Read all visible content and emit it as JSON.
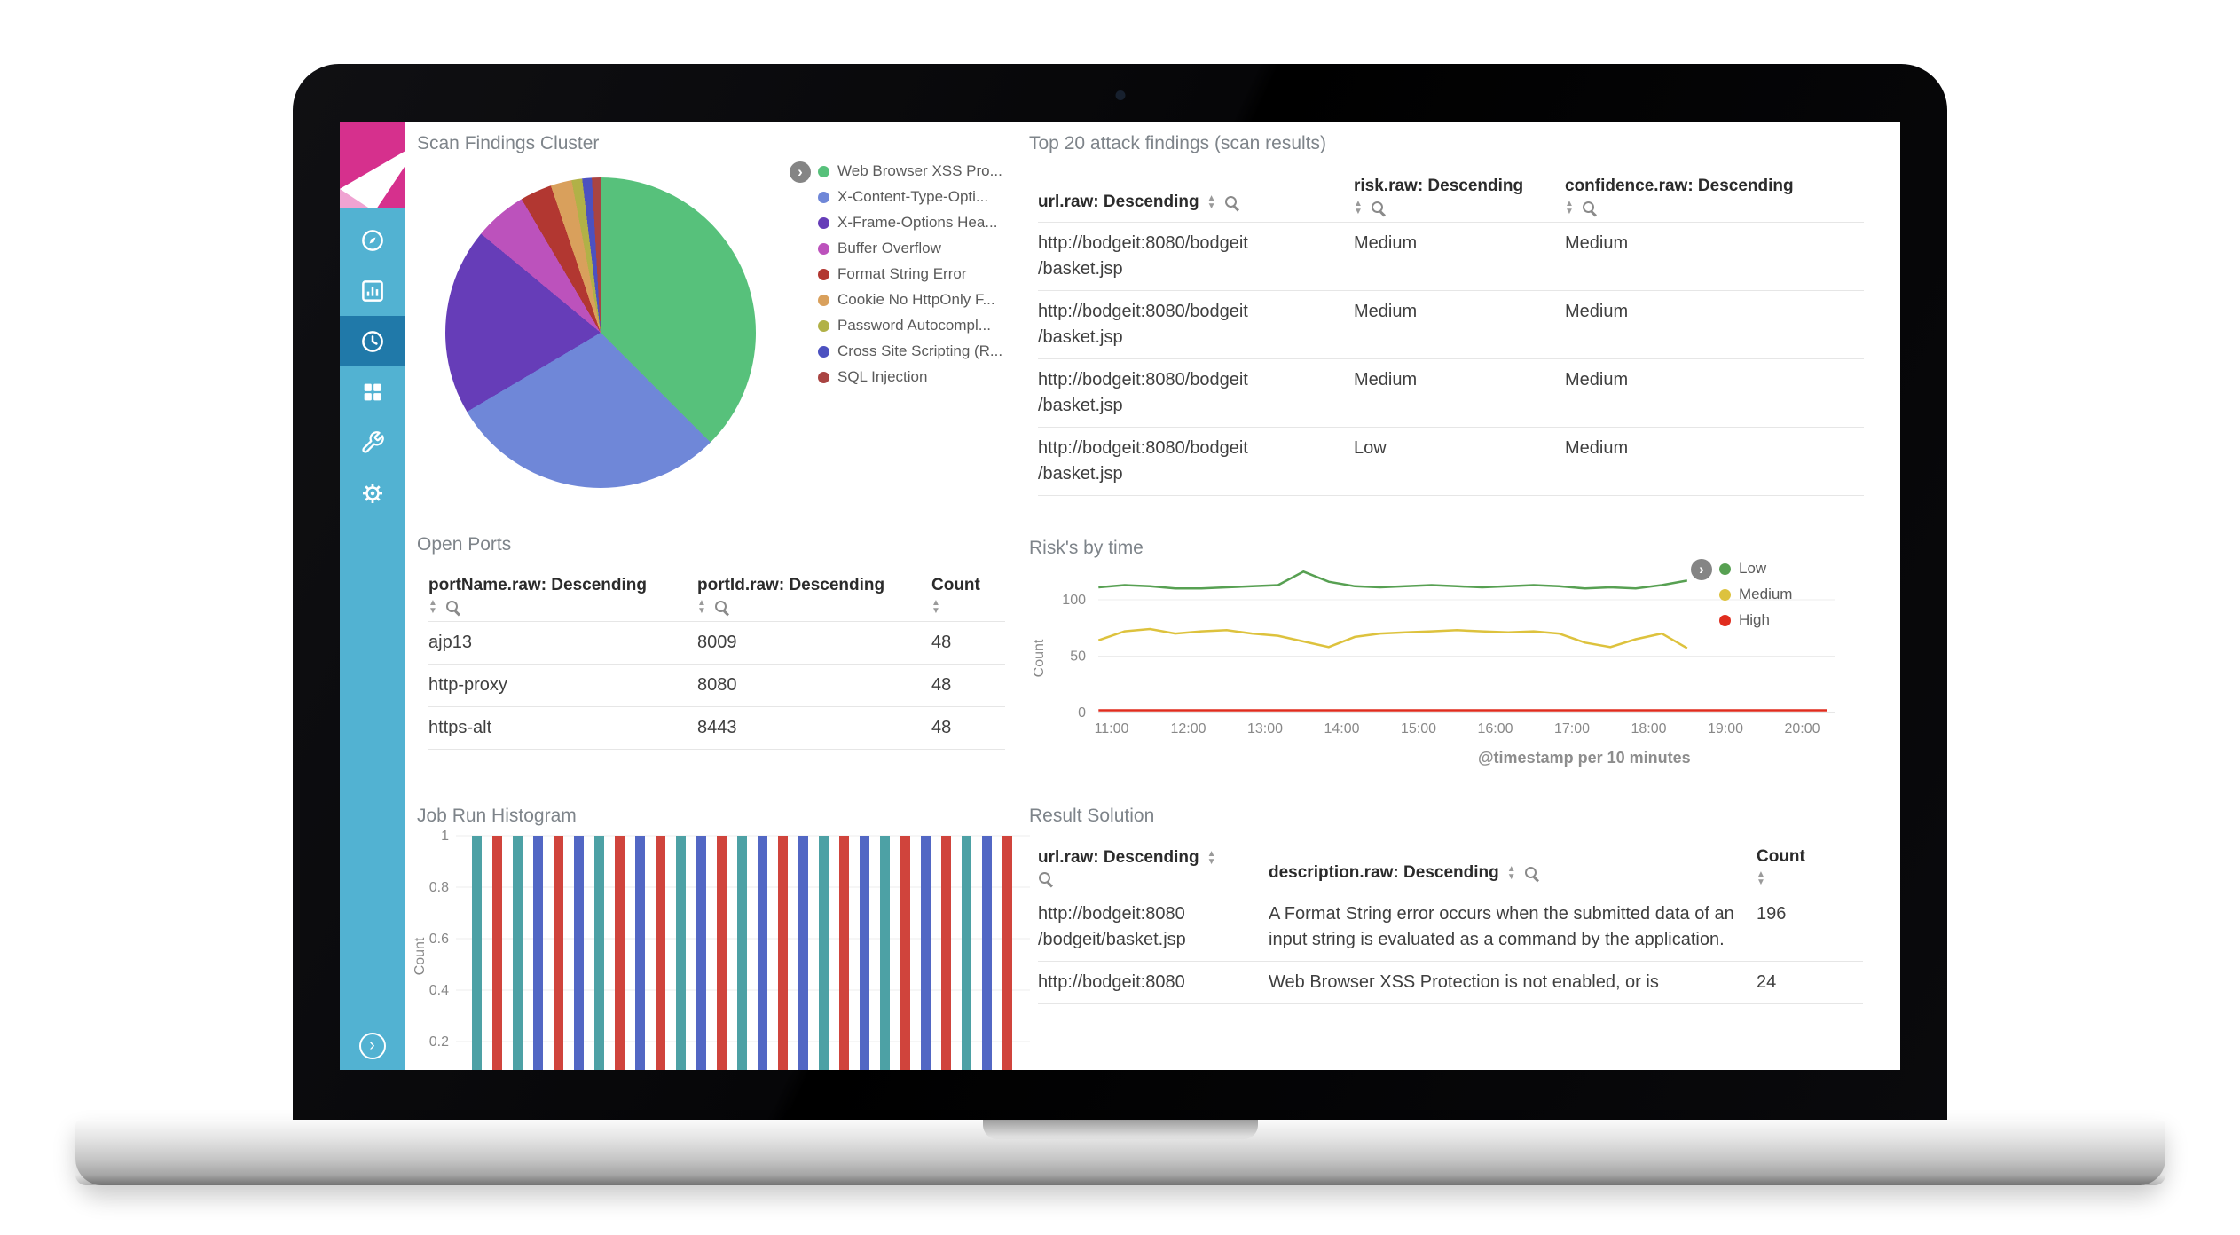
{
  "icons": {
    "chevron_right": "›",
    "sort_up": "▲",
    "sort_down": "▼"
  },
  "sidebar": {
    "items": [
      {
        "icon": "compass-icon",
        "active": false
      },
      {
        "icon": "bar-chart-icon",
        "active": false
      },
      {
        "icon": "clock-icon",
        "active": true
      },
      {
        "icon": "dashboard-icon",
        "active": false
      },
      {
        "icon": "wrench-icon",
        "active": false
      },
      {
        "icon": "gear-icon",
        "active": false
      }
    ]
  },
  "panels": {
    "scan_findings": {
      "title": "Scan Findings Cluster"
    },
    "top20": {
      "title": "Top 20 attack findings (scan results)",
      "columns": [
        {
          "label": "url.raw: Descending",
          "icons": "inline"
        },
        {
          "label": "risk.raw: Descending",
          "icons": "below"
        },
        {
          "label": "confidence.raw: Descending",
          "icons": "below"
        }
      ],
      "rows": [
        [
          [
            "http://bodgeit:8080/bodgeit",
            "/basket.jsp"
          ],
          "Medium",
          "Medium"
        ],
        [
          [
            "http://bodgeit:8080/bodgeit",
            "/basket.jsp"
          ],
          "Medium",
          "Medium"
        ],
        [
          [
            "http://bodgeit:8080/bodgeit",
            "/basket.jsp"
          ],
          "Medium",
          "Medium"
        ],
        [
          [
            "http://bodgeit:8080/bodgeit",
            "/basket.jsp"
          ],
          "Low",
          "Medium"
        ]
      ]
    },
    "open_ports": {
      "title": "Open Ports",
      "columns": [
        {
          "label": "portName.raw: Descending",
          "icons": "below"
        },
        {
          "label": "portId.raw: Descending",
          "icons": "below"
        },
        {
          "label": "Count",
          "icons": "sort-below"
        }
      ],
      "rows": [
        [
          "ajp13",
          "8009",
          "48"
        ],
        [
          "http-proxy",
          "8080",
          "48"
        ],
        [
          "https-alt",
          "8443",
          "48"
        ]
      ]
    },
    "risk_by_time": {
      "title": "Risk's by time",
      "caption": "@timestamp per 10 minutes"
    },
    "job_histogram": {
      "title": "Job Run Histogram"
    },
    "result_solution": {
      "title": "Result Solution",
      "columns": [
        {
          "label": "url.raw: Descending",
          "icons": "sort-inline-mag-below"
        },
        {
          "label": "description.raw: Descending",
          "icons": "inline"
        },
        {
          "label": "Count",
          "icons": "sort-below"
        }
      ],
      "rows": [
        [
          [
            "http://bodgeit:8080",
            "/bodgeit/basket.jsp"
          ],
          "A Format String error occurs when the submitted data of an input string is evaluated as a command by the application.",
          "196"
        ],
        [
          [
            "http://bodgeit:8080"
          ],
          "Web Browser XSS Protection is not enabled, or is",
          "24"
        ]
      ]
    }
  },
  "chart_data": [
    {
      "type": "pie",
      "title": "Scan Findings Cluster",
      "slices": [
        {
          "label": "Web Browser XSS Pro...",
          "pct": 37.5,
          "color": "#57c17b"
        },
        {
          "label": "X-Content-Type-Opti...",
          "pct": 29.0,
          "color": "#6f87d8"
        },
        {
          "label": "X-Frame-Options Hea...",
          "pct": 19.5,
          "color": "#663db8"
        },
        {
          "label": "Buffer Overflow",
          "pct": 5.5,
          "color": "#bc52bc"
        },
        {
          "label": "Format String Error",
          "pct": 3.3,
          "color": "#b23731"
        },
        {
          "label": "Cookie No HttpOnly F...",
          "pct": 2.2,
          "color": "#d9a05c"
        },
        {
          "label": "Password Autocompl...",
          "pct": 1.1,
          "color": "#b1b147"
        },
        {
          "label": "Cross Site Scripting (R...",
          "pct": 1.0,
          "color": "#4c51c0"
        },
        {
          "label": "SQL Injection",
          "pct": 0.9,
          "color": "#a94442"
        }
      ]
    },
    {
      "type": "line",
      "title": "Risk's by time",
      "ylabel": "Count",
      "xlabel": "@timestamp per 10 minutes",
      "ylim": [
        0,
        140
      ],
      "legend_position": "right",
      "y_ticks": [
        {
          "v": 100,
          "label": "100"
        },
        {
          "v": 50,
          "label": "50"
        },
        {
          "v": 0,
          "label": "0"
        }
      ],
      "x_ticks": [
        {
          "h": 11,
          "label": "11:00"
        },
        {
          "h": 12,
          "label": "12:00"
        },
        {
          "h": 13,
          "label": "13:00"
        },
        {
          "h": 14,
          "label": "14:00"
        },
        {
          "h": 15,
          "label": "15:00"
        },
        {
          "h": 16,
          "label": "16:00"
        },
        {
          "h": 17,
          "label": "17:00"
        },
        {
          "h": 18,
          "label": "18:00"
        },
        {
          "h": 19,
          "label": "19:00"
        },
        {
          "h": 20,
          "label": "20:00"
        }
      ],
      "series": [
        {
          "name": "Low",
          "color": "#57a052",
          "points": [
            [
              10.83,
              111
            ],
            [
              11.17,
              113
            ],
            [
              11.5,
              112
            ],
            [
              11.83,
              110
            ],
            [
              12.17,
              110
            ],
            [
              12.5,
              111
            ],
            [
              12.83,
              112
            ],
            [
              13.17,
              113
            ],
            [
              13.5,
              125
            ],
            [
              13.83,
              116
            ],
            [
              14.17,
              112
            ],
            [
              14.5,
              111
            ],
            [
              14.83,
              112
            ],
            [
              15.17,
              113
            ],
            [
              15.5,
              112
            ],
            [
              15.83,
              111
            ],
            [
              16.17,
              112
            ],
            [
              16.5,
              113
            ],
            [
              16.83,
              112
            ],
            [
              17.17,
              110
            ],
            [
              17.5,
              111
            ],
            [
              17.83,
              110
            ],
            [
              18.17,
              113
            ],
            [
              18.5,
              117
            ]
          ]
        },
        {
          "name": "Medium",
          "color": "#ddc23d",
          "points": [
            [
              10.83,
              64
            ],
            [
              11.17,
              72
            ],
            [
              11.5,
              74
            ],
            [
              11.83,
              70
            ],
            [
              12.17,
              72
            ],
            [
              12.5,
              73
            ],
            [
              12.83,
              70
            ],
            [
              13.17,
              68
            ],
            [
              13.5,
              63
            ],
            [
              13.83,
              58
            ],
            [
              14.17,
              67
            ],
            [
              14.5,
              70
            ],
            [
              14.83,
              71
            ],
            [
              15.17,
              72
            ],
            [
              15.5,
              73
            ],
            [
              15.83,
              72
            ],
            [
              16.17,
              71
            ],
            [
              16.5,
              72
            ],
            [
              16.83,
              70
            ],
            [
              17.17,
              62
            ],
            [
              17.5,
              58
            ],
            [
              17.83,
              65
            ],
            [
              18.17,
              70
            ],
            [
              18.5,
              57
            ]
          ]
        },
        {
          "name": "High",
          "color": "#e02d1f",
          "points": [
            [
              10.83,
              2
            ],
            [
              12,
              2
            ],
            [
              13,
              2
            ],
            [
              14,
              2
            ],
            [
              15,
              2
            ],
            [
              16,
              2
            ],
            [
              17,
              2
            ],
            [
              18,
              2
            ],
            [
              19,
              2
            ],
            [
              20,
              2
            ],
            [
              20.33,
              2
            ]
          ]
        }
      ]
    },
    {
      "type": "bar",
      "title": "Job Run Histogram",
      "ylabel": "Count",
      "ylim": [
        0,
        1
      ],
      "y_ticks": [
        {
          "v": 1,
          "label": "1"
        },
        {
          "v": 0.8,
          "label": "0.8"
        },
        {
          "v": 0.6,
          "label": "0.6"
        },
        {
          "v": 0.4,
          "label": "0.4"
        },
        {
          "v": 0.2,
          "label": "0.2"
        }
      ],
      "values": [
        1,
        1,
        1,
        1,
        1,
        1,
        1,
        1,
        1,
        1,
        1,
        1,
        1,
        1,
        1,
        1,
        1,
        1,
        1,
        1,
        1,
        1,
        1,
        1,
        1,
        1,
        1
      ],
      "colors": [
        "#4da1a5",
        "#d0443c",
        "#4da1a5",
        "#5267c4",
        "#d0443c",
        "#5267c4",
        "#4da1a5",
        "#d0443c",
        "#5267c4",
        "#d0443c",
        "#4da1a5",
        "#5267c4",
        "#d0443c",
        "#4da1a5",
        "#5267c4",
        "#d0443c",
        "#5267c4",
        "#4da1a5",
        "#d0443c",
        "#5267c4",
        "#4da1a5",
        "#d0443c",
        "#5267c4",
        "#d0443c",
        "#4da1a5",
        "#5267c4",
        "#d0443c"
      ]
    }
  ]
}
